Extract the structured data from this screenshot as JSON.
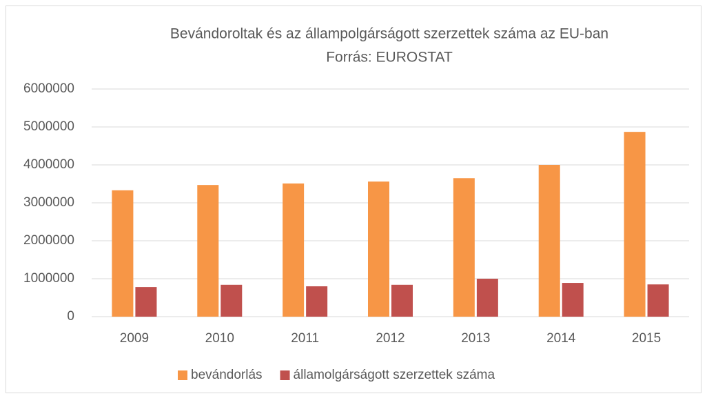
{
  "chart_data": {
    "type": "bar",
    "title": "Bevándoroltak és az állampolgárságott szerzettek száma az EU-ban",
    "subtitle": "Forrás: EUROSTAT",
    "categories": [
      "2009",
      "2010",
      "2011",
      "2012",
      "2013",
      "2014",
      "2015"
    ],
    "series": [
      {
        "name": "bevándorlás",
        "color": "#f79646",
        "values": [
          3330000,
          3470000,
          3510000,
          3560000,
          3650000,
          4000000,
          4870000
        ]
      },
      {
        "name": "államolgárságott szerzettek száma",
        "color": "#c0504d",
        "values": [
          780000,
          840000,
          800000,
          840000,
          1000000,
          890000,
          850000
        ]
      }
    ],
    "ylim": [
      0,
      6000000
    ],
    "yticks": [
      0,
      1000000,
      2000000,
      3000000,
      4000000,
      5000000,
      6000000
    ],
    "grid": true,
    "legend": "bottom"
  }
}
